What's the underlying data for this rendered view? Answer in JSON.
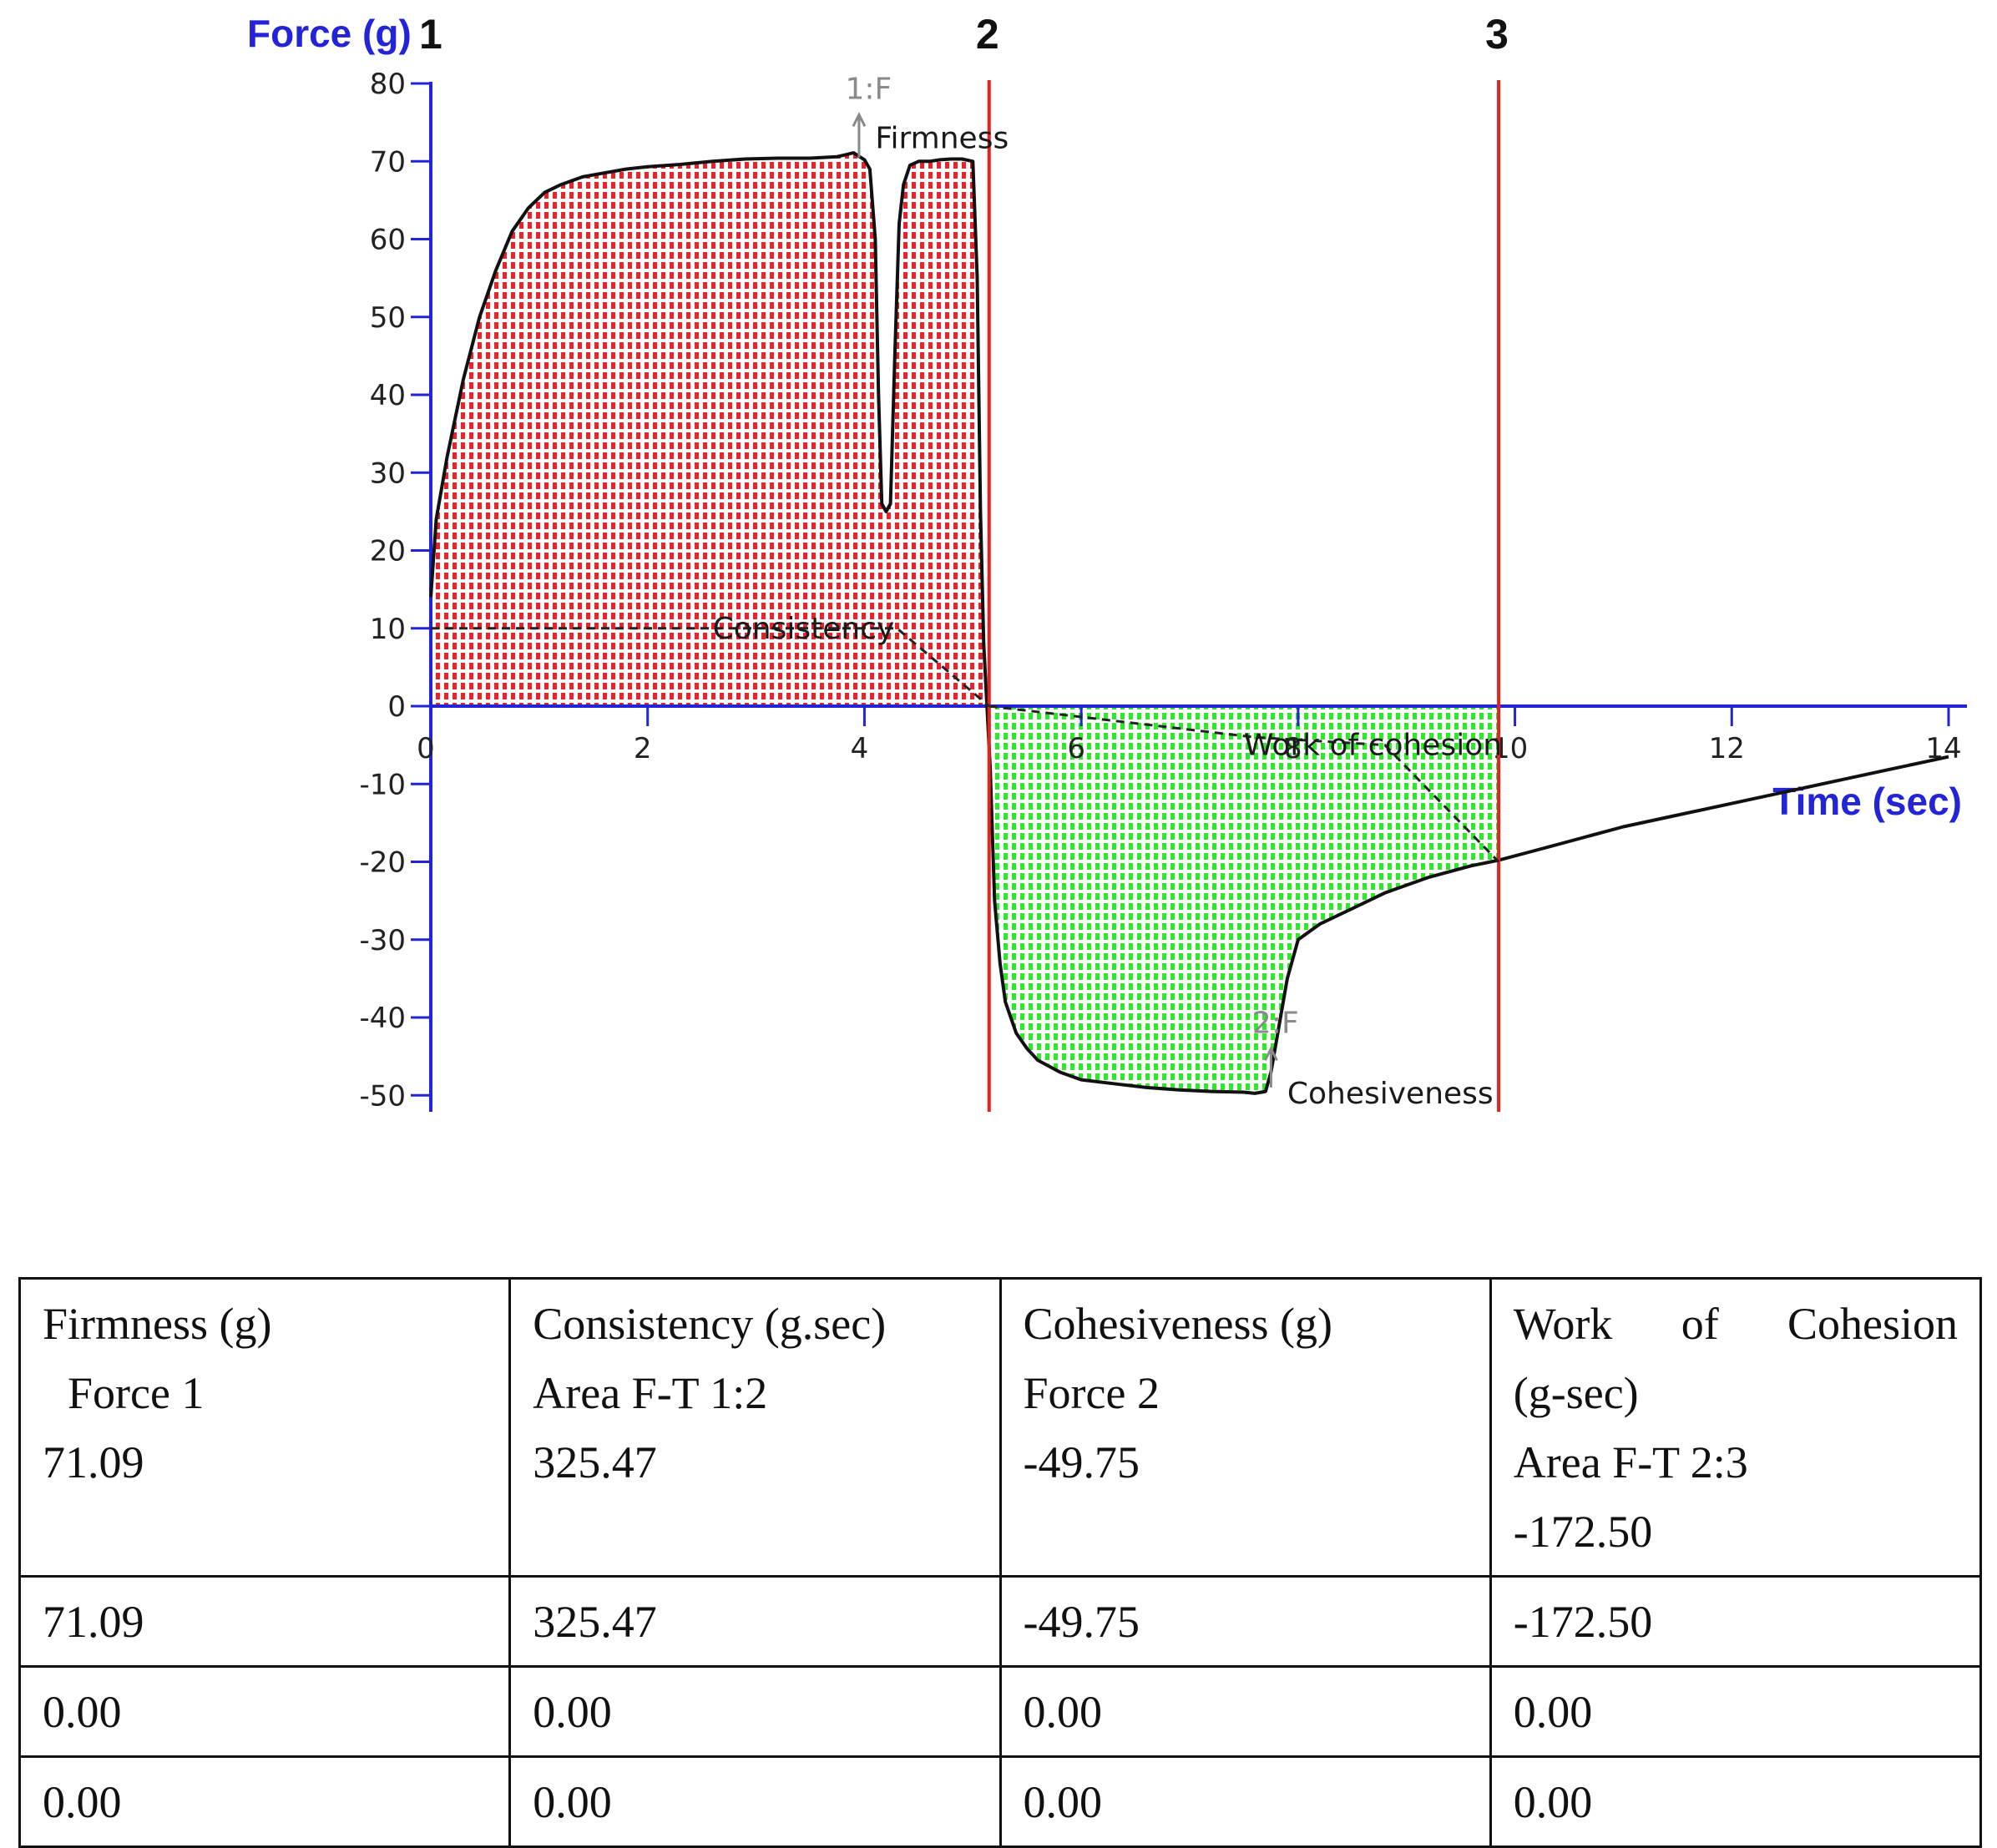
{
  "chart_data": {
    "type": "area",
    "ylabel": "Force (g)",
    "xlabel": "Time (sec)",
    "xlim": [
      0,
      14
    ],
    "ylim": [
      -50,
      80
    ],
    "xticks": [
      0,
      2,
      4,
      6,
      8,
      10,
      12,
      14
    ],
    "xtick_labels": [
      "0",
      "2",
      "4",
      "6",
      "8",
      "10",
      "12",
      "14"
    ],
    "yticks": [
      80,
      70,
      60,
      50,
      40,
      30,
      20,
      10,
      0,
      -10,
      -20,
      -30,
      -40,
      -50
    ],
    "ytick_labels": [
      "80",
      "70",
      "60",
      "50",
      "40",
      "30",
      "20",
      "10",
      "0",
      "-10",
      "-20",
      "-30",
      "-40",
      "-50"
    ],
    "grid": false,
    "markers": [
      {
        "label": "1",
        "x": 0
      },
      {
        "label": "2",
        "x": 5.15
      },
      {
        "label": "3",
        "x": 9.85
      }
    ],
    "series": [
      {
        "x": [
          0,
          0.05,
          0.15,
          0.3,
          0.45,
          0.6,
          0.75,
          0.9,
          1.05,
          1.2,
          1.4,
          1.6,
          1.8,
          2.0,
          2.3,
          2.6,
          2.9,
          3.2,
          3.5,
          3.75,
          3.9,
          4.0,
          4.05,
          4.1,
          4.13,
          4.16,
          4.2,
          4.24,
          4.28,
          4.32,
          4.36,
          4.42,
          4.5,
          4.6,
          4.7,
          4.8,
          4.9,
          5.0,
          5.04,
          5.07,
          5.1,
          5.13,
          5.16,
          5.2,
          5.25,
          5.3,
          5.4,
          5.5,
          5.6,
          5.8,
          6.0,
          6.3,
          6.6,
          6.9,
          7.2,
          7.5,
          7.6,
          7.7,
          7.75,
          7.8,
          7.9,
          8.0,
          8.2,
          8.5,
          8.8,
          9.2,
          9.6,
          9.85,
          10.2,
          10.6,
          11.0,
          11.5,
          12.0,
          12.5,
          13.0,
          13.5,
          13.9,
          14.0
        ],
        "y": [
          14,
          24,
          32,
          42,
          50,
          56,
          61,
          64,
          66,
          67,
          68,
          68.5,
          69,
          69.3,
          69.6,
          70,
          70.3,
          70.4,
          70.4,
          70.6,
          71.09,
          70.2,
          69,
          60,
          40,
          26,
          25,
          26,
          45,
          62,
          67,
          69.5,
          70,
          70,
          70.2,
          70.3,
          70.3,
          70,
          55,
          25,
          8,
          0,
          -8,
          -25,
          -33,
          -38,
          -42,
          -44,
          -45.5,
          -47,
          -48,
          -48.5,
          -49,
          -49.3,
          -49.5,
          -49.6,
          -49.75,
          -49.5,
          -47,
          -43,
          -35,
          -30,
          -28,
          -26,
          -24,
          -22,
          -20.5,
          -19.8,
          -18.5,
          -17,
          -15.5,
          -14,
          -12.5,
          -11,
          -9.5,
          -8,
          -6.8,
          -6.5
        ]
      }
    ],
    "annotations": [
      {
        "text": "1:F",
        "x": 3.9,
        "y": 78
      },
      {
        "text": "Firmness",
        "x": 4.1,
        "y": 73
      },
      {
        "text": "Consistency",
        "x": 2.6,
        "y": 10
      },
      {
        "text": "Work of cohesion",
        "x": 7.5,
        "y": -5
      },
      {
        "text": "2:F",
        "x": 7.5,
        "y": -42
      },
      {
        "text": "Cohesiveness",
        "x": 7.9,
        "y": -49.75
      }
    ],
    "fill_regions": [
      {
        "from": 0,
        "to": 5.15,
        "color": "#e8232a"
      },
      {
        "from": 5.15,
        "to": 9.85,
        "color": "#2ee82a"
      }
    ]
  },
  "colors": {
    "axis": "#2323d8",
    "curve": "#111111",
    "marker_line": "#e32222",
    "fill_positive": "#e8232a",
    "fill_negative": "#2ee82a"
  },
  "table": {
    "header": {
      "col1": {
        "line1": "Firmness (g)",
        "line2": "Force 1",
        "line3": "71.09"
      },
      "col2": {
        "line1": "Consistency (g.sec)",
        "line2": "Area F-T 1:2",
        "line3": "325.47"
      },
      "col3": {
        "line1": "Cohesiveness (g)",
        "line2": "Force 2",
        "line3": "-49.75"
      },
      "col4": {
        "line1_words": [
          "Work",
          "of",
          "Cohesion"
        ],
        "line2": "(g-sec)",
        "line3": "Area F-T 2:3",
        "line4": "-172.50"
      }
    },
    "rows": [
      [
        "71.09",
        "325.47",
        "-49.75",
        "-172.50"
      ],
      [
        "0.00",
        "0.00",
        "0.00",
        "0.00"
      ],
      [
        "0.00",
        "0.00",
        "0.00",
        "0.00"
      ]
    ]
  }
}
